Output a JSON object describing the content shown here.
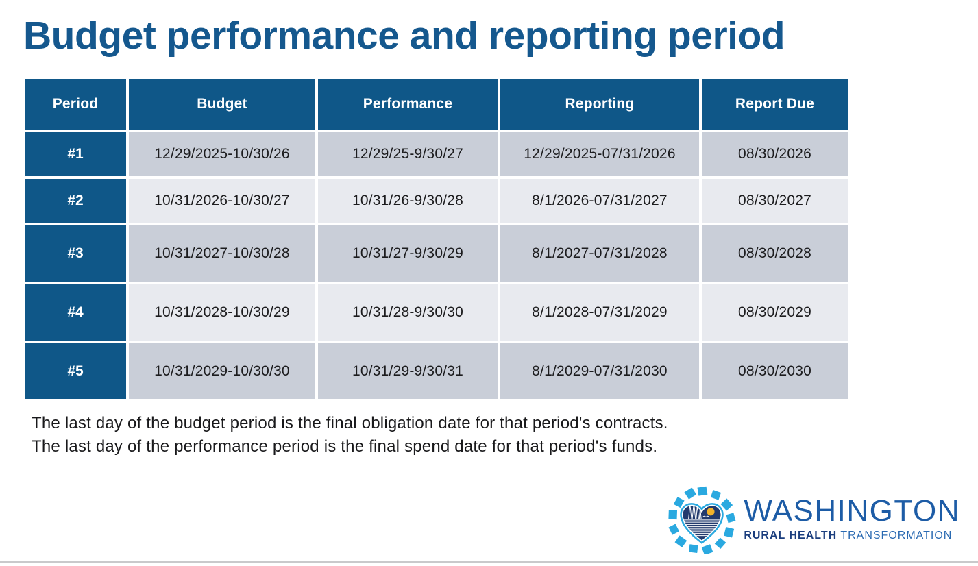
{
  "slide": {
    "title": "Budget performance and reporting period",
    "notes": [
      "The last day of the budget period is the final obligation date for that period's contracts.",
      "The last day of the performance period is the final spend date for that period's funds."
    ]
  },
  "table": {
    "columns": [
      "Period",
      "Budget",
      "Performance",
      "Reporting",
      "Report Due"
    ],
    "rows": [
      {
        "period": "#1",
        "budget": "12/29/2025-10/30/26",
        "performance": "12/29/25-9/30/27",
        "reporting": "12/29/2025-07/31/2026",
        "report_due": "08/30/2026"
      },
      {
        "period": "#2",
        "budget": "10/31/2026-10/30/27",
        "performance": "10/31/26-9/30/28",
        "reporting": "8/1/2026-07/31/2027",
        "report_due": "08/30/2027"
      },
      {
        "period": "#3",
        "budget": "10/31/2027-10/30/28",
        "performance": "10/31/27-9/30/29",
        "reporting": "8/1/2027-07/31/2028",
        "report_due": "08/30/2028"
      },
      {
        "period": "#4",
        "budget": "10/31/2028-10/30/29",
        "performance": "10/31/28-9/30/30",
        "reporting": "8/1/2028-07/31/2029",
        "report_due": "08/30/2029"
      },
      {
        "period": "#5",
        "budget": "10/31/2029-10/30/30",
        "performance": "10/31/29-9/30/31",
        "reporting": "8/1/2029-07/31/2030",
        "report_due": "08/30/2030"
      }
    ]
  },
  "logo": {
    "brand": "WASHINGTON",
    "tagline_bold": "RURAL HEALTH",
    "tagline_regular": "TRANSFORMATION",
    "icon": "heart-sunburst-icon"
  },
  "colors": {
    "title_blue": "#15588e",
    "header_blue": "#0f5788",
    "row_alt_dark": "#c9ced8",
    "row_alt_light": "#e8eaef",
    "logo_light_blue": "#2aa9e0",
    "logo_heart_navy": "#223a6d",
    "logo_text_blue": "#1d5ca6",
    "logo_navy_text": "#1b3e7e",
    "sun_yellow": "#f2b22a",
    "rule_gray": "#c9c9cb"
  }
}
